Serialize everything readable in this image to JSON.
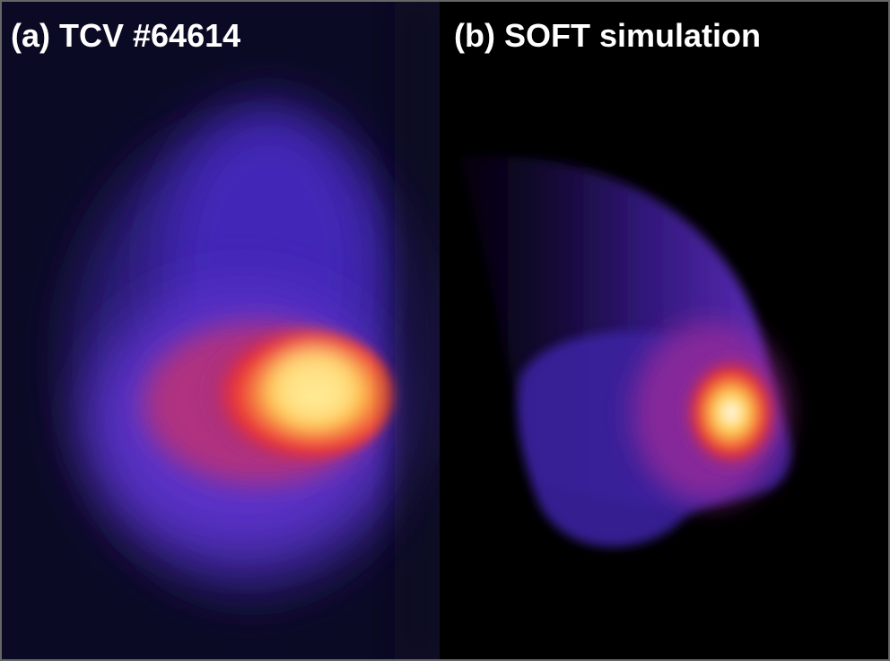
{
  "panels": [
    {
      "label": "(a) TCV #64614"
    },
    {
      "label": "(b) SOFT simulation"
    }
  ]
}
